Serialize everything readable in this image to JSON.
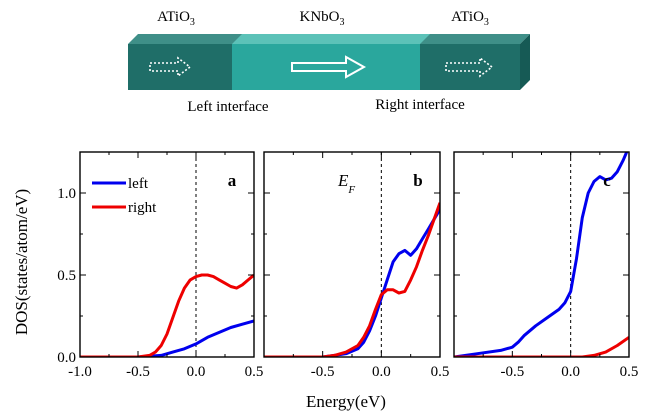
{
  "diagram": {
    "left_material": {
      "base": "ATiO",
      "sub": "3"
    },
    "center_material": {
      "base": "KNbO",
      "sub": "3"
    },
    "right_material": {
      "base": "ATiO",
      "sub": "3"
    },
    "left_interface_label": "Left interface",
    "right_interface_label": "Right interface",
    "colors": {
      "dark_block": "#1f6e68",
      "dark_block_top": "#3f8f88",
      "center_block": "#2aa79d",
      "center_block_top": "#5cc2b8",
      "side_face": "#165a55",
      "arrow": "#ffffff"
    }
  },
  "chart_data": [
    {
      "type": "line",
      "panel_label": "a",
      "xlabel": "",
      "ylabel": "DOS(states/atom/eV)",
      "xlim": [
        -1.0,
        0.5
      ],
      "ylim": [
        0.0,
        1.25
      ],
      "x_ticks": [
        -1.0,
        -0.5,
        0.0,
        0.5
      ],
      "x_tick_labels": [
        "-1.0",
        "-0.5",
        "0.0",
        "0.5"
      ],
      "y_ticks": [
        0.0,
        0.5,
        1.0
      ],
      "y_tick_labels": [
        "0.0",
        "0.5",
        "1.0"
      ],
      "fermi_level_x": 0.0,
      "legend": {
        "position": "top-left",
        "entries": [
          "left",
          "right"
        ]
      },
      "series": [
        {
          "name": "left",
          "color": "#0000ee",
          "x": [
            -1.0,
            -0.5,
            -0.3,
            -0.2,
            -0.1,
            0.0,
            0.1,
            0.2,
            0.3,
            0.4,
            0.5
          ],
          "y": [
            0.0,
            0.0,
            0.01,
            0.03,
            0.05,
            0.08,
            0.12,
            0.15,
            0.18,
            0.2,
            0.22
          ]
        },
        {
          "name": "right",
          "color": "#ee0000",
          "x": [
            -1.0,
            -0.5,
            -0.4,
            -0.35,
            -0.3,
            -0.25,
            -0.2,
            -0.15,
            -0.1,
            -0.05,
            0.0,
            0.05,
            0.1,
            0.15,
            0.2,
            0.25,
            0.3,
            0.35,
            0.4,
            0.45,
            0.5
          ],
          "y": [
            0.0,
            0.0,
            0.01,
            0.03,
            0.07,
            0.14,
            0.24,
            0.34,
            0.42,
            0.47,
            0.49,
            0.5,
            0.5,
            0.49,
            0.47,
            0.45,
            0.43,
            0.42,
            0.44,
            0.47,
            0.5
          ]
        }
      ]
    },
    {
      "type": "line",
      "panel_label": "b",
      "fermi_label": {
        "base": "E",
        "sub": "F"
      },
      "xlabel": "Energy(eV)",
      "xlim": [
        -1.0,
        0.5
      ],
      "ylim": [
        0.0,
        1.25
      ],
      "x_ticks": [
        -0.5,
        0.0,
        0.5
      ],
      "x_tick_labels": [
        "-0.5",
        "0.0",
        "0.5"
      ],
      "fermi_level_x": 0.0,
      "series": [
        {
          "name": "left",
          "color": "#0000ee",
          "x": [
            -1.0,
            -0.5,
            -0.4,
            -0.3,
            -0.2,
            -0.15,
            -0.1,
            -0.05,
            0.0,
            0.05,
            0.1,
            0.15,
            0.2,
            0.25,
            0.3,
            0.35,
            0.4,
            0.45,
            0.5
          ],
          "y": [
            0.0,
            0.0,
            0.01,
            0.02,
            0.05,
            0.09,
            0.16,
            0.25,
            0.36,
            0.47,
            0.58,
            0.63,
            0.65,
            0.62,
            0.66,
            0.72,
            0.78,
            0.84,
            0.9
          ]
        },
        {
          "name": "right",
          "color": "#ee0000",
          "x": [
            -1.0,
            -0.5,
            -0.4,
            -0.3,
            -0.2,
            -0.15,
            -0.1,
            -0.05,
            0.0,
            0.05,
            0.1,
            0.15,
            0.2,
            0.25,
            0.3,
            0.35,
            0.4,
            0.45,
            0.5
          ],
          "y": [
            0.0,
            0.0,
            0.01,
            0.03,
            0.07,
            0.12,
            0.19,
            0.29,
            0.38,
            0.41,
            0.41,
            0.39,
            0.4,
            0.47,
            0.55,
            0.65,
            0.74,
            0.84,
            0.94
          ]
        }
      ]
    },
    {
      "type": "line",
      "panel_label": "c",
      "xlabel": "",
      "xlim": [
        -1.0,
        0.5
      ],
      "ylim": [
        0.0,
        1.25
      ],
      "x_ticks": [
        -0.5,
        0.0,
        0.5
      ],
      "x_tick_labels": [
        "-0.5",
        "0.0",
        "0.5"
      ],
      "fermi_level_x": 0.0,
      "series": [
        {
          "name": "left",
          "color": "#0000ee",
          "x": [
            -1.0,
            -0.8,
            -0.6,
            -0.5,
            -0.45,
            -0.4,
            -0.3,
            -0.2,
            -0.1,
            -0.05,
            0.0,
            0.05,
            0.1,
            0.15,
            0.2,
            0.25,
            0.3,
            0.35,
            0.4,
            0.45,
            0.48
          ],
          "y": [
            0.0,
            0.02,
            0.04,
            0.06,
            0.09,
            0.13,
            0.19,
            0.24,
            0.29,
            0.33,
            0.4,
            0.6,
            0.85,
            1.0,
            1.07,
            1.1,
            1.08,
            1.09,
            1.13,
            1.2,
            1.25
          ]
        },
        {
          "name": "right",
          "color": "#ee0000",
          "x": [
            -1.0,
            0.0,
            0.1,
            0.2,
            0.3,
            0.4,
            0.5
          ],
          "y": [
            0.0,
            0.0,
            0.0,
            0.01,
            0.03,
            0.07,
            0.12
          ]
        }
      ]
    }
  ]
}
